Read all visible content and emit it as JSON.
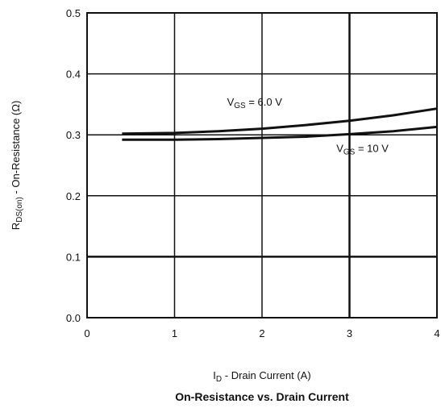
{
  "chart_data": {
    "type": "line",
    "title": "On-Resistance vs. Drain Current",
    "xlabel": {
      "main": "I",
      "sub": "D",
      "rest": " - Drain Current (A)"
    },
    "ylabel": {
      "main": "R",
      "sub": "DS(on)",
      "rest": " - On-Resistance (Ω)"
    },
    "xlim": [
      0,
      4
    ],
    "ylim": [
      0.0,
      0.5
    ],
    "x_ticks": [
      0,
      1,
      2,
      3,
      4
    ],
    "x_tick_labels": [
      "0",
      "1",
      "2",
      "3",
      "4"
    ],
    "y_ticks": [
      0.0,
      0.1,
      0.2,
      0.3,
      0.4,
      0.5
    ],
    "y_tick_labels": [
      "0.0",
      "0.1",
      "0.2",
      "0.3",
      "0.4",
      "0.5"
    ],
    "grid": true,
    "line_color": "#111111",
    "series": [
      {
        "name": {
          "main": "V",
          "sub": "GS",
          "rest": " = 6.0 V"
        },
        "label_at": [
          1.6,
          0.348
        ],
        "x": [
          0.4,
          1.0,
          1.5,
          2.0,
          2.5,
          3.0,
          3.5,
          4.0
        ],
        "y": [
          0.302,
          0.303,
          0.306,
          0.31,
          0.316,
          0.323,
          0.332,
          0.343
        ]
      },
      {
        "name": {
          "main": "V",
          "sub": "GS",
          "rest": " = 10 V"
        },
        "label_at": [
          2.85,
          0.272
        ],
        "x": [
          0.4,
          1.0,
          1.5,
          2.0,
          2.5,
          3.0,
          3.5,
          4.0
        ],
        "y": [
          0.292,
          0.292,
          0.293,
          0.295,
          0.297,
          0.301,
          0.306,
          0.313
        ]
      }
    ]
  }
}
